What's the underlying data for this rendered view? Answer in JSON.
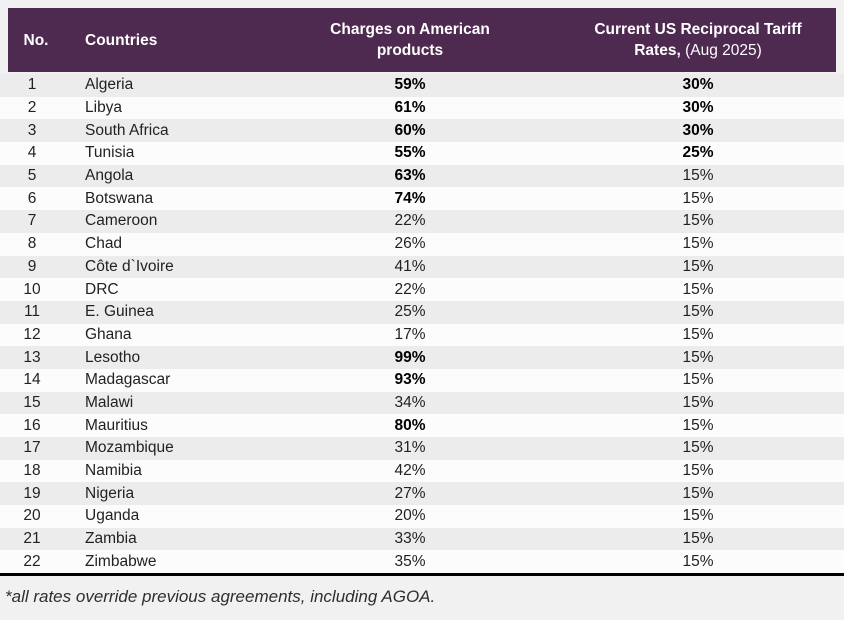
{
  "colors": {
    "header_bg": "#4E2A50",
    "row_odd": "#ECECEC",
    "row_even": "#FCFCFC",
    "page_bg": "#F1F1F1"
  },
  "header": {
    "no_label": "No.",
    "countries_label": "Countries",
    "charges_line1": "Charges on American",
    "charges_line2": "products",
    "tariff_line1": "Current US Reciprocal Tariff",
    "tariff_line2_bold": "Rates,",
    "tariff_line2_regular": " (Aug 2025)"
  },
  "chart_data": {
    "type": "table",
    "title": "",
    "columns": [
      "No.",
      "Countries",
      "Charges on American products",
      "Current US Reciprocal Tariff Rates, (Aug 2025)"
    ],
    "rows": [
      {
        "no": "1",
        "country": "Algeria",
        "charge": "59%",
        "charge_bold": true,
        "tariff": "30%",
        "tariff_bold": true
      },
      {
        "no": "2",
        "country": "Libya",
        "charge": "61%",
        "charge_bold": true,
        "tariff": "30%",
        "tariff_bold": true
      },
      {
        "no": "3",
        "country": "South Africa",
        "charge": "60%",
        "charge_bold": true,
        "tariff": "30%",
        "tariff_bold": true
      },
      {
        "no": "4",
        "country": "Tunisia",
        "charge": "55%",
        "charge_bold": true,
        "tariff": "25%",
        "tariff_bold": true
      },
      {
        "no": "5",
        "country": "Angola",
        "charge": "63%",
        "charge_bold": true,
        "tariff": "15%",
        "tariff_bold": false
      },
      {
        "no": "6",
        "country": "Botswana",
        "charge": "74%",
        "charge_bold": true,
        "tariff": "15%",
        "tariff_bold": false
      },
      {
        "no": "7",
        "country": "Cameroon",
        "charge": "22%",
        "charge_bold": false,
        "tariff": "15%",
        "tariff_bold": false
      },
      {
        "no": "8",
        "country": "Chad",
        "charge": "26%",
        "charge_bold": false,
        "tariff": "15%",
        "tariff_bold": false
      },
      {
        "no": "9",
        "country": "Côte d`Ivoire",
        "charge": "41%",
        "charge_bold": false,
        "tariff": "15%",
        "tariff_bold": false
      },
      {
        "no": "10",
        "country": "DRC",
        "charge": "22%",
        "charge_bold": false,
        "tariff": "15%",
        "tariff_bold": false
      },
      {
        "no": "11",
        "country": "E. Guinea",
        "charge": "25%",
        "charge_bold": false,
        "tariff": "15%",
        "tariff_bold": false
      },
      {
        "no": "12",
        "country": "Ghana",
        "charge": "17%",
        "charge_bold": false,
        "tariff": "15%",
        "tariff_bold": false
      },
      {
        "no": "13",
        "country": "Lesotho",
        "charge": "99%",
        "charge_bold": true,
        "tariff": "15%",
        "tariff_bold": false
      },
      {
        "no": "14",
        "country": "Madagascar",
        "charge": "93%",
        "charge_bold": true,
        "tariff": "15%",
        "tariff_bold": false
      },
      {
        "no": "15",
        "country": "Malawi",
        "charge": "34%",
        "charge_bold": false,
        "tariff": "15%",
        "tariff_bold": false
      },
      {
        "no": "16",
        "country": "Mauritius",
        "charge": "80%",
        "charge_bold": true,
        "tariff": "15%",
        "tariff_bold": false
      },
      {
        "no": "17",
        "country": "Mozambique",
        "charge": "31%",
        "charge_bold": false,
        "tariff": "15%",
        "tariff_bold": false
      },
      {
        "no": "18",
        "country": "Namibia",
        "charge": "42%",
        "charge_bold": false,
        "tariff": "15%",
        "tariff_bold": false
      },
      {
        "no": "19",
        "country": "Nigeria",
        "charge": "27%",
        "charge_bold": false,
        "tariff": "15%",
        "tariff_bold": false
      },
      {
        "no": "20",
        "country": "Uganda",
        "charge": "20%",
        "charge_bold": false,
        "tariff": "15%",
        "tariff_bold": false
      },
      {
        "no": "21",
        "country": "Zambia",
        "charge": "33%",
        "charge_bold": false,
        "tariff": "15%",
        "tariff_bold": false
      },
      {
        "no": "22",
        "country": "Zimbabwe",
        "charge": "35%",
        "charge_bold": false,
        "tariff": "15%",
        "tariff_bold": false
      }
    ]
  },
  "footnote": "*all rates override previous agreements, including AGOA."
}
